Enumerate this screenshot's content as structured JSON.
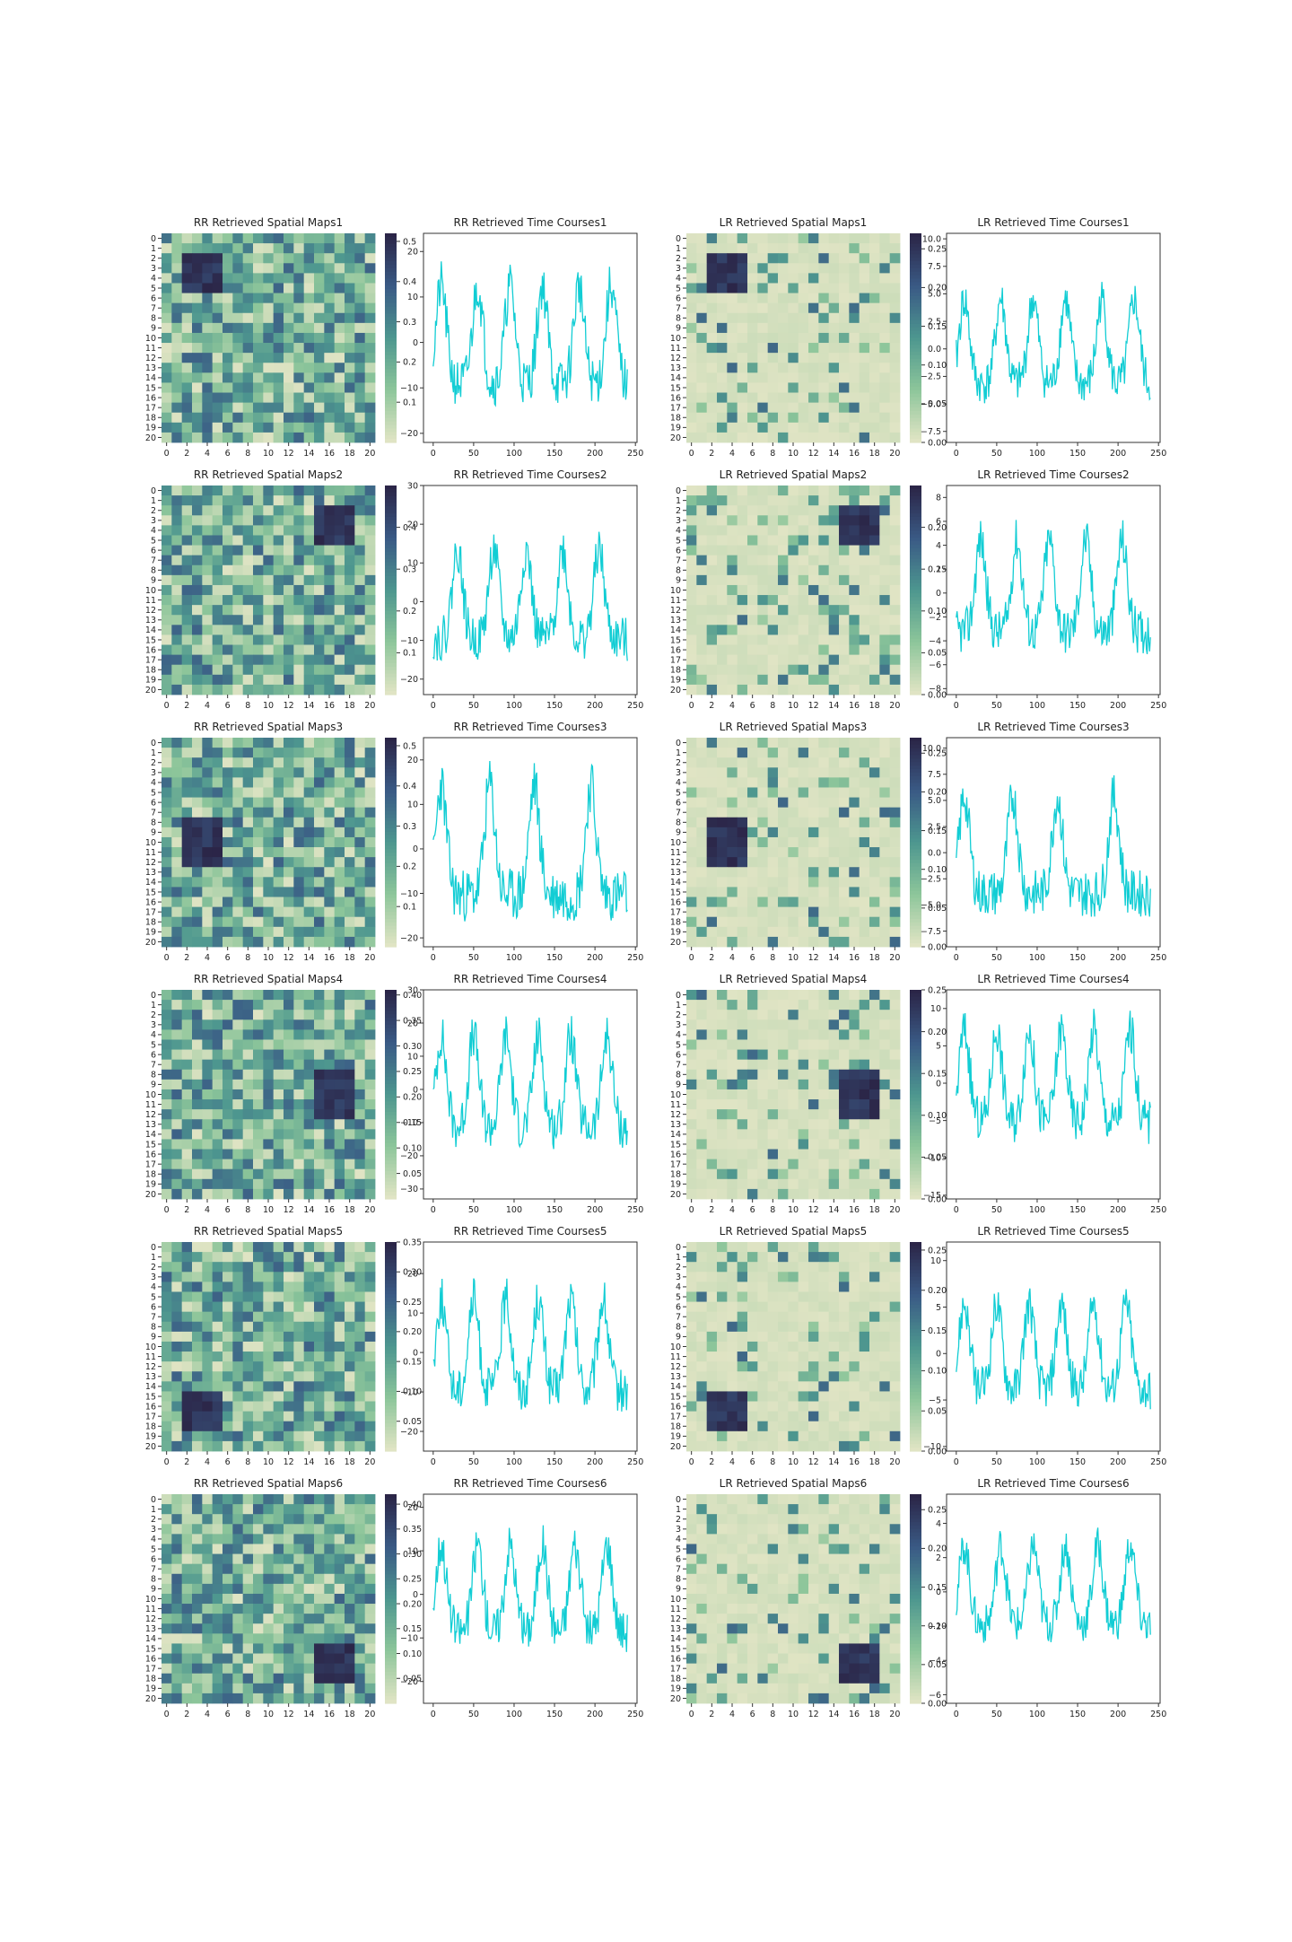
{
  "palette": {
    "heat_low": "#e0e4c4",
    "heat_mid_low": "#8cc59a",
    "heat_mid": "#4d968f",
    "heat_mid_high": "#3a5a85",
    "heat_high": "#2b2547",
    "line": "#12cdd4",
    "axes": "#333333"
  },
  "chart_data": [
    {
      "type": "heatmap",
      "title": "RR Retrieved Spatial Maps1",
      "hot": [
        2,
        5,
        2,
        5
      ],
      "ticks_x": [
        "0",
        "2",
        "4",
        "6",
        "8",
        "10",
        "12",
        "14",
        "16",
        "18",
        "20"
      ],
      "ticks_y": [
        "0",
        "1",
        "2",
        "3",
        "4",
        "5",
        "6",
        "7",
        "8",
        "9",
        "10",
        "11",
        "12",
        "13",
        "14",
        "15",
        "16",
        "17",
        "18",
        "19",
        "20"
      ],
      "colorbar": {
        "vmin": 0.0,
        "vmax": 0.52,
        "ticks": [
          "0.1",
          "0.2",
          "0.3",
          "0.4",
          "0.5"
        ]
      },
      "sparse": false,
      "seed": 11
    },
    {
      "type": "line",
      "title": "RR Retrieved Time Courses1",
      "x_range": [
        0,
        240
      ],
      "ylim": [
        -22,
        24
      ],
      "xticks": [
        "0",
        "50",
        "100",
        "150",
        "200",
        "250"
      ],
      "yticks": [
        "-20",
        "-10",
        "0",
        "10",
        "20"
      ],
      "peaks": [
        10,
        55,
        95,
        135,
        180,
        220
      ],
      "amplitude": 14,
      "seed": 21
    },
    {
      "type": "heatmap",
      "title": "LR Retrieved Spatial Maps1",
      "hot": [
        2,
        5,
        2,
        5
      ],
      "ticks_x": [
        "0",
        "2",
        "4",
        "6",
        "8",
        "10",
        "12",
        "14",
        "16",
        "18",
        "20"
      ],
      "ticks_y": [
        "0",
        "1",
        "2",
        "3",
        "4",
        "5",
        "6",
        "7",
        "8",
        "9",
        "10",
        "11",
        "12",
        "13",
        "14",
        "15",
        "16",
        "17",
        "18",
        "19",
        "20"
      ],
      "colorbar": {
        "vmin": 0.0,
        "vmax": 0.27,
        "ticks": [
          "0.00",
          "0.05",
          "0.10",
          "0.15",
          "0.20",
          "0.25"
        ]
      },
      "sparse": true,
      "seed": 31
    },
    {
      "type": "line",
      "title": "LR Retrieved Time Courses1",
      "x_range": [
        0,
        240
      ],
      "ylim": [
        -8.5,
        10.5
      ],
      "xticks": [
        "0",
        "50",
        "100",
        "150",
        "200",
        "250"
      ],
      "yticks": [
        "-7.5",
        "-5.0",
        "-2.5",
        "0.0",
        "2.5",
        "5.0",
        "7.5",
        "10.0"
      ],
      "peaks": [
        10,
        55,
        95,
        135,
        180,
        220
      ],
      "amplitude": 5,
      "seed": 41
    },
    {
      "type": "heatmap",
      "title": "RR Retrieved Spatial Maps2",
      "hot": [
        2,
        5,
        15,
        18
      ],
      "ticks_x": [
        "0",
        "2",
        "4",
        "6",
        "8",
        "10",
        "12",
        "14",
        "16",
        "18",
        "20"
      ],
      "ticks_y": [
        "0",
        "1",
        "2",
        "3",
        "4",
        "5",
        "6",
        "7",
        "8",
        "9",
        "10",
        "11",
        "12",
        "13",
        "14",
        "15",
        "16",
        "17",
        "18",
        "19",
        "20"
      ],
      "colorbar": {
        "vmin": 0.0,
        "vmax": 0.5,
        "ticks": [
          "0.1",
          "0.2",
          "0.3",
          "0.4"
        ]
      },
      "sparse": false,
      "seed": 12
    },
    {
      "type": "line",
      "title": "RR Retrieved Time Courses2",
      "x_range": [
        0,
        240
      ],
      "ylim": [
        -24,
        30
      ],
      "xticks": [
        "0",
        "50",
        "100",
        "150",
        "200",
        "250"
      ],
      "yticks": [
        "-20",
        "-10",
        "0",
        "10",
        "20",
        "30"
      ],
      "peaks": [
        30,
        75,
        115,
        160,
        205
      ],
      "amplitude": 15,
      "seed": 22
    },
    {
      "type": "heatmap",
      "title": "LR Retrieved Spatial Maps2",
      "hot": [
        2,
        5,
        15,
        18
      ],
      "ticks_x": [
        "0",
        "2",
        "4",
        "6",
        "8",
        "10",
        "12",
        "14",
        "16",
        "18",
        "20"
      ],
      "ticks_y": [
        "0",
        "1",
        "2",
        "3",
        "4",
        "5",
        "6",
        "7",
        "8",
        "9",
        "10",
        "11",
        "12",
        "13",
        "14",
        "15",
        "16",
        "17",
        "18",
        "19",
        "20"
      ],
      "colorbar": {
        "vmin": 0.0,
        "vmax": 0.25,
        "ticks": [
          "0.00",
          "0.05",
          "0.10",
          "0.15",
          "0.20"
        ]
      },
      "sparse": true,
      "seed": 32
    },
    {
      "type": "line",
      "title": "LR Retrieved Time Courses2",
      "x_range": [
        0,
        240
      ],
      "ylim": [
        -8.5,
        9
      ],
      "xticks": [
        "0",
        "50",
        "100",
        "150",
        "200",
        "250"
      ],
      "yticks": [
        "-8",
        "-6",
        "-4",
        "-2",
        "0",
        "2",
        "4",
        "6",
        "8"
      ],
      "peaks": [
        30,
        75,
        115,
        160,
        205
      ],
      "amplitude": 5,
      "seed": 42
    },
    {
      "type": "heatmap",
      "title": "RR Retrieved Spatial Maps3",
      "hot": [
        8,
        12,
        2,
        5
      ],
      "ticks_x": [
        "0",
        "2",
        "4",
        "6",
        "8",
        "10",
        "12",
        "14",
        "16",
        "18",
        "20"
      ],
      "ticks_y": [
        "0",
        "1",
        "2",
        "3",
        "4",
        "5",
        "6",
        "7",
        "8",
        "9",
        "10",
        "11",
        "12",
        "13",
        "14",
        "15",
        "16",
        "17",
        "18",
        "19",
        "20"
      ],
      "colorbar": {
        "vmin": 0.0,
        "vmax": 0.52,
        "ticks": [
          "0.1",
          "0.2",
          "0.3",
          "0.4",
          "0.5"
        ]
      },
      "sparse": false,
      "seed": 13
    },
    {
      "type": "line",
      "title": "RR Retrieved Time Courses3",
      "x_range": [
        0,
        240
      ],
      "ylim": [
        -22,
        25
      ],
      "xticks": [
        "0",
        "50",
        "100",
        "150",
        "200",
        "250"
      ],
      "yticks": [
        "-20",
        "-10",
        "0",
        "10",
        "20"
      ],
      "peaks": [
        10,
        70,
        125,
        195
      ],
      "amplitude": 16,
      "seed": 23
    },
    {
      "type": "heatmap",
      "title": "LR Retrieved Spatial Maps3",
      "hot": [
        8,
        12,
        2,
        5
      ],
      "ticks_x": [
        "0",
        "2",
        "4",
        "6",
        "8",
        "10",
        "12",
        "14",
        "16",
        "18",
        "20"
      ],
      "ticks_y": [
        "0",
        "1",
        "2",
        "3",
        "4",
        "5",
        "6",
        "7",
        "8",
        "9",
        "10",
        "11",
        "12",
        "13",
        "14",
        "15",
        "16",
        "17",
        "18",
        "19",
        "20"
      ],
      "colorbar": {
        "vmin": 0.0,
        "vmax": 0.27,
        "ticks": [
          "0.00",
          "0.05",
          "0.10",
          "0.15",
          "0.20",
          "0.25"
        ]
      },
      "sparse": true,
      "seed": 33
    },
    {
      "type": "line",
      "title": "LR Retrieved Time Courses3",
      "x_range": [
        0,
        240
      ],
      "ylim": [
        -9,
        11
      ],
      "xticks": [
        "0",
        "50",
        "100",
        "150",
        "200",
        "250"
      ],
      "yticks": [
        "-7.5",
        "-5.0",
        "-2.5",
        "0.0",
        "2.5",
        "5.0",
        "7.5",
        "10.0"
      ],
      "peaks": [
        10,
        70,
        125,
        195
      ],
      "amplitude": 6,
      "seed": 43
    },
    {
      "type": "heatmap",
      "title": "RR Retrieved Spatial Maps4",
      "hot": [
        8,
        12,
        15,
        18
      ],
      "ticks_x": [
        "0",
        "2",
        "4",
        "6",
        "8",
        "10",
        "12",
        "14",
        "16",
        "18",
        "20"
      ],
      "ticks_y": [
        "0",
        "1",
        "2",
        "3",
        "4",
        "5",
        "6",
        "7",
        "8",
        "9",
        "10",
        "11",
        "12",
        "13",
        "14",
        "15",
        "16",
        "17",
        "18",
        "19",
        "20"
      ],
      "colorbar": {
        "vmin": 0.0,
        "vmax": 0.41,
        "ticks": [
          "0.05",
          "0.10",
          "0.15",
          "0.20",
          "0.25",
          "0.30",
          "0.35",
          "0.40"
        ]
      },
      "sparse": false,
      "seed": 14
    },
    {
      "type": "line",
      "title": "RR Retrieved Time Courses4",
      "x_range": [
        0,
        240
      ],
      "ylim": [
        -33,
        30
      ],
      "xticks": [
        "0",
        "50",
        "100",
        "150",
        "200",
        "250"
      ],
      "yticks": [
        "-30",
        "-20",
        "-10",
        "0",
        "10",
        "20",
        "30"
      ],
      "peaks": [
        10,
        50,
        90,
        130,
        170,
        215
      ],
      "amplitude": 18,
      "seed": 24
    },
    {
      "type": "heatmap",
      "title": "LR Retrieved Spatial Maps4",
      "hot": [
        8,
        12,
        15,
        18
      ],
      "ticks_x": [
        "0",
        "2",
        "4",
        "6",
        "8",
        "10",
        "12",
        "14",
        "16",
        "18",
        "20"
      ],
      "ticks_y": [
        "0",
        "1",
        "2",
        "3",
        "4",
        "5",
        "6",
        "7",
        "8",
        "9",
        "10",
        "11",
        "12",
        "13",
        "14",
        "15",
        "16",
        "17",
        "18",
        "19",
        "20"
      ],
      "colorbar": {
        "vmin": 0.0,
        "vmax": 0.25,
        "ticks": [
          "0.00",
          "0.05",
          "0.10",
          "0.15",
          "0.20",
          "0.25"
        ]
      },
      "sparse": true,
      "seed": 34
    },
    {
      "type": "line",
      "title": "LR Retrieved Time Courses4",
      "x_range": [
        0,
        240
      ],
      "ylim": [
        -15.5,
        12.5
      ],
      "xticks": [
        "0",
        "50",
        "100",
        "150",
        "200",
        "250"
      ],
      "yticks": [
        "-15",
        "-10",
        "-5",
        "0",
        "5",
        "10"
      ],
      "peaks": [
        10,
        50,
        90,
        130,
        170,
        215
      ],
      "amplitude": 8,
      "seed": 44
    },
    {
      "type": "heatmap",
      "title": "RR Retrieved Spatial Maps5",
      "hot": [
        15,
        18,
        2,
        5
      ],
      "ticks_x": [
        "0",
        "2",
        "4",
        "6",
        "8",
        "10",
        "12",
        "14",
        "16",
        "18",
        "20"
      ],
      "ticks_y": [
        "0",
        "1",
        "2",
        "3",
        "4",
        "5",
        "6",
        "7",
        "8",
        "9",
        "10",
        "11",
        "12",
        "13",
        "14",
        "15",
        "16",
        "17",
        "18",
        "19",
        "20"
      ],
      "colorbar": {
        "vmin": 0.0,
        "vmax": 0.35,
        "ticks": [
          "0.05",
          "0.10",
          "0.15",
          "0.20",
          "0.25",
          "0.30",
          "0.35"
        ]
      },
      "sparse": false,
      "seed": 15
    },
    {
      "type": "line",
      "title": "RR Retrieved Time Courses5",
      "x_range": [
        0,
        240
      ],
      "ylim": [
        -25,
        28
      ],
      "xticks": [
        "0",
        "50",
        "100",
        "150",
        "200",
        "250"
      ],
      "yticks": [
        "-20",
        "-10",
        "0",
        "10",
        "20"
      ],
      "peaks": [
        10,
        50,
        90,
        130,
        170,
        210
      ],
      "amplitude": 15,
      "seed": 25
    },
    {
      "type": "heatmap",
      "title": "LR Retrieved Spatial Maps5",
      "hot": [
        15,
        18,
        2,
        5
      ],
      "ticks_x": [
        "0",
        "2",
        "4",
        "6",
        "8",
        "10",
        "12",
        "14",
        "16",
        "18",
        "20"
      ],
      "ticks_y": [
        "0",
        "1",
        "2",
        "3",
        "4",
        "5",
        "6",
        "7",
        "8",
        "9",
        "10",
        "11",
        "12",
        "13",
        "14",
        "15",
        "16",
        "17",
        "18",
        "19",
        "20"
      ],
      "colorbar": {
        "vmin": 0.0,
        "vmax": 0.26,
        "ticks": [
          "0.00",
          "0.05",
          "0.10",
          "0.15",
          "0.20",
          "0.25"
        ]
      },
      "sparse": true,
      "seed": 35
    },
    {
      "type": "line",
      "title": "LR Retrieved Time Courses5",
      "x_range": [
        0,
        240
      ],
      "ylim": [
        -10.5,
        12
      ],
      "xticks": [
        "0",
        "50",
        "100",
        "150",
        "200",
        "250"
      ],
      "yticks": [
        "-10",
        "-5",
        "0",
        "5",
        "10"
      ],
      "peaks": [
        10,
        50,
        90,
        130,
        170,
        210
      ],
      "amplitude": 6,
      "seed": 45
    },
    {
      "type": "heatmap",
      "title": "RR Retrieved Spatial Maps6",
      "hot": [
        15,
        18,
        15,
        18
      ],
      "ticks_x": [
        "0",
        "2",
        "4",
        "6",
        "8",
        "10",
        "12",
        "14",
        "16",
        "18",
        "20"
      ],
      "ticks_y": [
        "0",
        "1",
        "2",
        "3",
        "4",
        "5",
        "6",
        "7",
        "8",
        "9",
        "10",
        "11",
        "12",
        "13",
        "14",
        "15",
        "16",
        "17",
        "18",
        "19",
        "20"
      ],
      "colorbar": {
        "vmin": 0.0,
        "vmax": 0.42,
        "ticks": [
          "0.05",
          "0.10",
          "0.15",
          "0.20",
          "0.25",
          "0.30",
          "0.35",
          "0.40"
        ]
      },
      "sparse": false,
      "seed": 16
    },
    {
      "type": "line",
      "title": "RR Retrieved Time Courses6",
      "x_range": [
        0,
        240
      ],
      "ylim": [
        -25,
        23
      ],
      "xticks": [
        "0",
        "50",
        "100",
        "150",
        "200",
        "250"
      ],
      "yticks": [
        "-20",
        "-10",
        "0",
        "10",
        "20"
      ],
      "peaks": [
        10,
        55,
        95,
        135,
        175,
        215
      ],
      "amplitude": 13,
      "seed": 26
    },
    {
      "type": "heatmap",
      "title": "LR Retrieved Spatial Maps6",
      "hot": [
        15,
        18,
        15,
        18
      ],
      "ticks_x": [
        "0",
        "2",
        "4",
        "6",
        "8",
        "10",
        "12",
        "14",
        "16",
        "18",
        "20"
      ],
      "ticks_y": [
        "0",
        "1",
        "2",
        "3",
        "4",
        "5",
        "6",
        "7",
        "8",
        "9",
        "10",
        "11",
        "12",
        "13",
        "14",
        "15",
        "16",
        "17",
        "18",
        "19",
        "20"
      ],
      "colorbar": {
        "vmin": 0.0,
        "vmax": 0.27,
        "ticks": [
          "0.00",
          "0.05",
          "0.10",
          "0.15",
          "0.20",
          "0.25"
        ]
      },
      "sparse": true,
      "seed": 36
    },
    {
      "type": "line",
      "title": "LR Retrieved Time Courses6",
      "x_range": [
        0,
        240
      ],
      "ylim": [
        -6.5,
        5.7
      ],
      "xticks": [
        "0",
        "50",
        "100",
        "150",
        "200",
        "250"
      ],
      "yticks": [
        "-6",
        "-4",
        "-2",
        "0",
        "2",
        "4"
      ],
      "peaks": [
        10,
        55,
        95,
        135,
        175,
        215
      ],
      "amplitude": 3,
      "seed": 46
    }
  ]
}
